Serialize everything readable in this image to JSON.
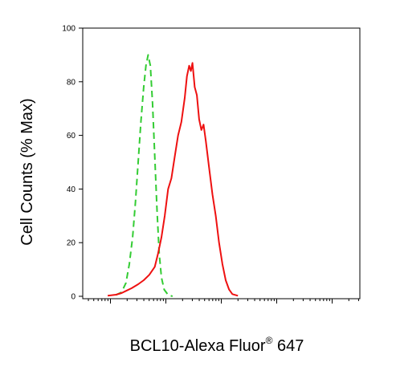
{
  "chart_data": {
    "type": "line",
    "title": "",
    "xlabel": "BCL10-Alexa Fluor",
    "xlabel_superscript": "®",
    "xlabel_suffix": " 647",
    "ylabel": "Cell Counts (% Max)",
    "x_scale": "log",
    "x_tick_labels_shown": false,
    "ylim": [
      0,
      100
    ],
    "yticks": [
      "0",
      "20",
      "40",
      "60",
      "80",
      "100"
    ],
    "grid": false,
    "legend": "none",
    "series": [
      {
        "color": "#33cc33",
        "style": "dashed",
        "points": [
          [
            -0.9,
            0.5
          ],
          [
            -0.8,
            1.5
          ],
          [
            -0.72,
            5
          ],
          [
            -0.66,
            12
          ],
          [
            -0.6,
            22
          ],
          [
            -0.55,
            35
          ],
          [
            -0.5,
            50
          ],
          [
            -0.45,
            65
          ],
          [
            -0.4,
            78
          ],
          [
            -0.36,
            86
          ],
          [
            -0.32,
            90
          ],
          [
            -0.28,
            86
          ],
          [
            -0.24,
            72
          ],
          [
            -0.2,
            52
          ],
          [
            -0.16,
            32
          ],
          [
            -0.12,
            16
          ],
          [
            -0.08,
            7
          ],
          [
            -0.03,
            2.5
          ],
          [
            0.04,
            0.5
          ],
          [
            0.12,
            0
          ]
        ]
      },
      {
        "color": "#ee1111",
        "style": "solid",
        "points": [
          [
            -1.05,
            0.2
          ],
          [
            -0.9,
            0.6
          ],
          [
            -0.8,
            1.2
          ],
          [
            -0.72,
            2
          ],
          [
            -0.62,
            3
          ],
          [
            -0.5,
            4.5
          ],
          [
            -0.4,
            6
          ],
          [
            -0.3,
            8
          ],
          [
            -0.2,
            11
          ],
          [
            -0.14,
            16
          ],
          [
            -0.08,
            22
          ],
          [
            -0.02,
            30
          ],
          [
            0.04,
            40
          ],
          [
            0.1,
            44
          ],
          [
            0.16,
            52
          ],
          [
            0.22,
            60
          ],
          [
            0.28,
            65
          ],
          [
            0.34,
            74
          ],
          [
            0.38,
            82
          ],
          [
            0.42,
            86
          ],
          [
            0.45,
            84
          ],
          [
            0.48,
            87
          ],
          [
            0.52,
            78
          ],
          [
            0.56,
            75
          ],
          [
            0.6,
            66
          ],
          [
            0.64,
            62
          ],
          [
            0.68,
            64
          ],
          [
            0.72,
            58
          ],
          [
            0.78,
            48
          ],
          [
            0.84,
            38
          ],
          [
            0.9,
            30
          ],
          [
            0.96,
            20
          ],
          [
            1.02,
            12
          ],
          [
            1.08,
            6
          ],
          [
            1.14,
            2.5
          ],
          [
            1.2,
            0.8
          ],
          [
            1.3,
            0.2
          ]
        ]
      }
    ]
  }
}
